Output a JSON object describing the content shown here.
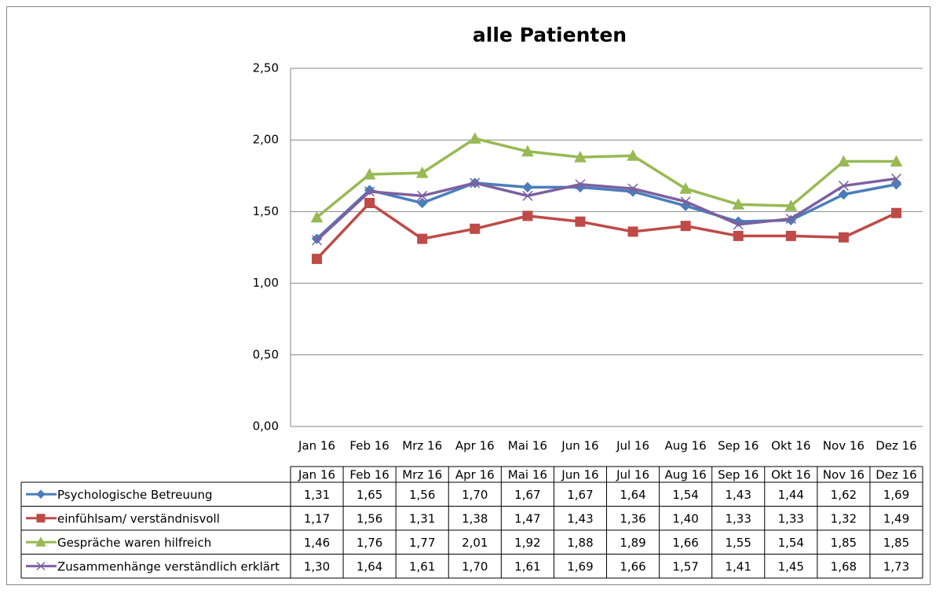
{
  "chart_data": {
    "type": "line",
    "title": "alle Patienten",
    "categories": [
      "Jan 16",
      "Feb 16",
      "Mrz 16",
      "Apr 16",
      "Mai 16",
      "Jun 16",
      "Jul 16",
      "Aug 16",
      "Sep 16",
      "Okt 16",
      "Nov 16",
      "Dez 16"
    ],
    "ylim": [
      0,
      2.5
    ],
    "yticks": [
      {
        "value": 0,
        "label": "0,00"
      },
      {
        "value": 0.5,
        "label": "0,50"
      },
      {
        "value": 1,
        "label": "1,00"
      },
      {
        "value": 1.5,
        "label": "1,50"
      },
      {
        "value": 2,
        "label": "2,00"
      },
      {
        "value": 2.5,
        "label": "2,50"
      }
    ],
    "grid": true,
    "series": [
      {
        "name": "Psychologische  Betreuung",
        "color": "#4a7ebb",
        "marker": "diamond",
        "values": [
          1.31,
          1.65,
          1.56,
          1.7,
          1.67,
          1.67,
          1.64,
          1.54,
          1.43,
          1.44,
          1.62,
          1.69
        ],
        "value_labels": [
          "1,31",
          "1,65",
          "1,56",
          "1,70",
          "1,67",
          "1,67",
          "1,64",
          "1,54",
          "1,43",
          "1,44",
          "1,62",
          "1,69"
        ]
      },
      {
        "name": "einfühlsam/ verständnisvoll",
        "color": "#be4b48",
        "marker": "square",
        "values": [
          1.17,
          1.56,
          1.31,
          1.38,
          1.47,
          1.43,
          1.36,
          1.4,
          1.33,
          1.33,
          1.32,
          1.49
        ],
        "value_labels": [
          "1,17",
          "1,56",
          "1,31",
          "1,38",
          "1,47",
          "1,43",
          "1,36",
          "1,40",
          "1,33",
          "1,33",
          "1,32",
          "1,49"
        ]
      },
      {
        "name": "Gespräche waren hilfreich",
        "color": "#98b954",
        "marker": "triangle",
        "values": [
          1.46,
          1.76,
          1.77,
          2.01,
          1.92,
          1.88,
          1.89,
          1.66,
          1.55,
          1.54,
          1.85,
          1.85
        ],
        "value_labels": [
          "1,46",
          "1,76",
          "1,77",
          "2,01",
          "1,92",
          "1,88",
          "1,89",
          "1,66",
          "1,55",
          "1,54",
          "1,85",
          "1,85"
        ]
      },
      {
        "name": "Zusammenhänge verständlich erklärt",
        "color": "#7d60a0",
        "marker": "x",
        "values": [
          1.3,
          1.64,
          1.61,
          1.7,
          1.61,
          1.69,
          1.66,
          1.57,
          1.41,
          1.45,
          1.68,
          1.73
        ],
        "value_labels": [
          "1,30",
          "1,64",
          "1,61",
          "1,70",
          "1,61",
          "1,69",
          "1,66",
          "1,57",
          "1,41",
          "1,45",
          "1,68",
          "1,73"
        ]
      }
    ]
  }
}
